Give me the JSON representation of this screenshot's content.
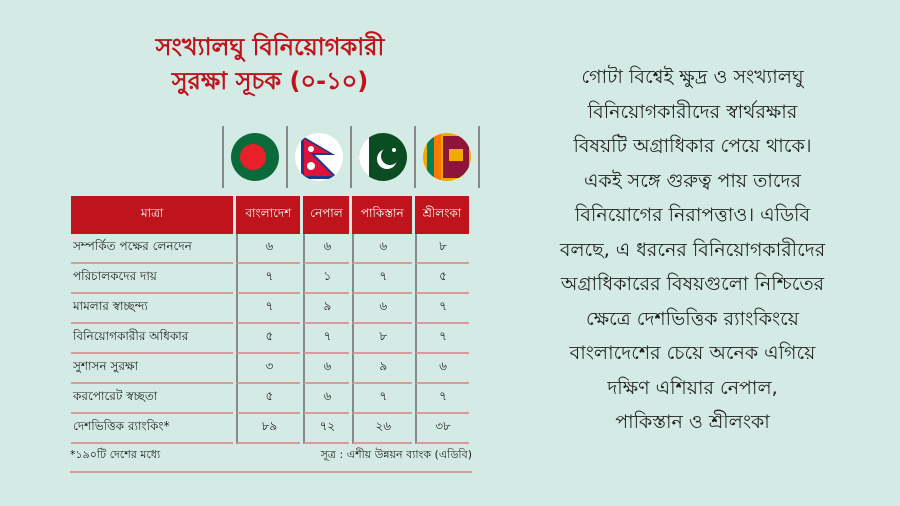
{
  "title": {
    "line1": "সংখ্যালঘু বিনিয়োগকারী",
    "line2": "সুরক্ষা সূচক (০-১০)"
  },
  "flags": [
    "bangladesh-flag-icon",
    "nepal-flag-icon",
    "pakistan-flag-icon",
    "sri-lanka-flag-icon"
  ],
  "colors": {
    "accent": "#c0141c",
    "background": "#d3ebe4"
  },
  "table": {
    "headers": [
      "মাত্রা",
      "বাংলাদেশ",
      "নেপাল",
      "পাকিস্তান",
      "শ্রীলংকা"
    ],
    "rows": [
      {
        "label": "সম্পর্কিত পক্ষের লেনদেন",
        "values": [
          "৬",
          "৬",
          "৬",
          "৮"
        ]
      },
      {
        "label": "পরিচালকদের দায়",
        "values": [
          "৭",
          "১",
          "৭",
          "৫"
        ]
      },
      {
        "label": "মামলার স্বাচ্ছন্দ্য",
        "values": [
          "৭",
          "৯",
          "৬",
          "৭"
        ]
      },
      {
        "label": "বিনিয়োগকারীর অধিকার",
        "values": [
          "৫",
          "৭",
          "৮",
          "৭"
        ]
      },
      {
        "label": "সুশাসন সুরক্ষা",
        "values": [
          "৩",
          "৬",
          "৯",
          "৬"
        ]
      },
      {
        "label": "করপোরেট স্বচ্ছতা",
        "values": [
          "৫",
          "৬",
          "৭",
          "৭"
        ]
      },
      {
        "label": "দেশভিত্তিক র‍্যাংকিং*",
        "values": [
          "৮৯",
          "৭২",
          "২৬",
          "৩৮"
        ]
      }
    ]
  },
  "footnote": "*১৯০টি দেশের মধ্যে",
  "source": "সূত্র : এশীয় উন্নয়ন ব্যাংক (এডিবি)",
  "paragraph": [
    "গোটা বিশ্বেই ক্ষুদ্র ও সংখ্যালঘু",
    "বিনিয়োগকারীদের স্বার্থরক্ষার",
    "বিষয়টি অগ্রাধিকার পেয়ে থাকে।",
    "একই সঙ্গে গুরুত্ব পায় তাদের",
    "বিনিয়োগের নিরাপত্তাও। এডিবি",
    "বলছে, এ ধরনের বিনিয়োগকারীদের",
    "অগ্রাধিকারের বিষয়গুলো নিশ্চিতের",
    "ক্ষেত্রে দেশভিত্তিক র‍্যাংকিংয়ে",
    "বাংলাদেশের চেয়ে অনেক এগিয়ে",
    "দক্ষিণ এশিয়ার নেপাল,",
    "পাকিস্তান ও শ্রীলংকা"
  ]
}
